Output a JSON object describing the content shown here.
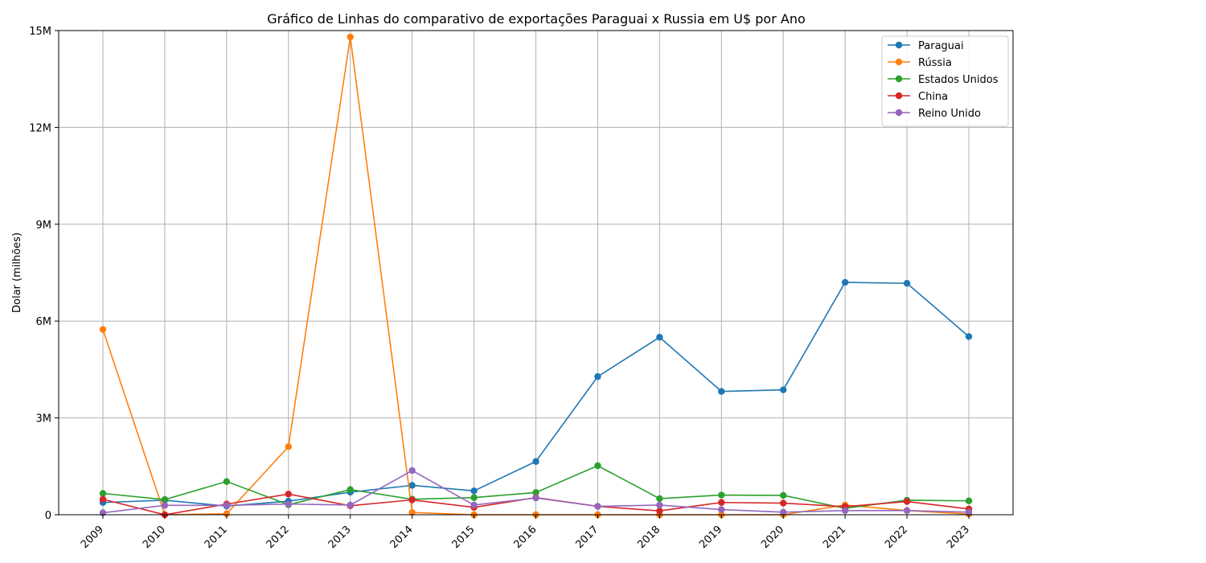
{
  "chart_data": {
    "type": "line",
    "title": "Gráfico de Linhas do comparativo de exportações Paraguai x Russia em U$ por Ano",
    "xlabel": "",
    "ylabel": "Dolar (milhões)",
    "x": [
      "2009",
      "2010",
      "2011",
      "2012",
      "2013",
      "2014",
      "2015",
      "2016",
      "2017",
      "2018",
      "2019",
      "2020",
      "2021",
      "2022",
      "2023"
    ],
    "ylim": [
      0,
      15000000
    ],
    "yticks": [
      0,
      3000000,
      6000000,
      9000000,
      12000000,
      15000000
    ],
    "ytick_labels": [
      "0",
      "3M",
      "6M",
      "9M",
      "12M",
      "15M"
    ],
    "grid": true,
    "legend_position": "top-right",
    "series": [
      {
        "name": "Paraguai",
        "color": "#1f77b4",
        "values": [
          380000,
          450000,
          270000,
          420000,
          700000,
          910000,
          740000,
          1650000,
          4280000,
          5500000,
          3820000,
          3870000,
          7200000,
          7170000,
          5520000
        ]
      },
      {
        "name": "Rússia",
        "color": "#ff7f0e",
        "values": [
          5740000,
          0,
          30000,
          2110000,
          14800000,
          70000,
          0,
          0,
          0,
          0,
          0,
          0,
          300000,
          130000,
          20000
        ]
      },
      {
        "name": "Estados Unidos",
        "color": "#2ca02c",
        "values": [
          660000,
          470000,
          1030000,
          310000,
          780000,
          480000,
          530000,
          690000,
          1520000,
          500000,
          610000,
          600000,
          200000,
          450000,
          430000
        ]
      },
      {
        "name": "China",
        "color": "#d62728",
        "values": [
          480000,
          0,
          330000,
          640000,
          280000,
          460000,
          230000,
          530000,
          260000,
          120000,
          380000,
          360000,
          250000,
          410000,
          180000
        ]
      },
      {
        "name": "Reino Unido",
        "color": "#9467bd",
        "values": [
          60000,
          290000,
          290000,
          330000,
          300000,
          1370000,
          300000,
          520000,
          260000,
          300000,
          160000,
          80000,
          130000,
          130000,
          80000
        ]
      }
    ]
  }
}
